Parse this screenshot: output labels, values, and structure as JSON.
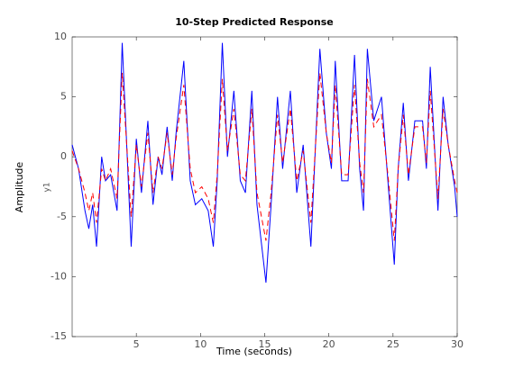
{
  "chart_data": {
    "type": "line",
    "title": "10-Step Predicted Response",
    "xlabel": "Time (seconds)",
    "ylabel": "Amplitude",
    "output_label": "y1",
    "x": [
      0,
      0.5,
      1,
      1.3,
      1.6,
      1.9,
      2.3,
      2.6,
      3,
      3.5,
      3.9,
      4.6,
      5,
      5.4,
      5.9,
      6.3,
      6.7,
      7,
      7.4,
      7.8,
      8.1,
      8.7,
      9.2,
      9.6,
      10.1,
      10.6,
      11,
      11.3,
      11.7,
      12.1,
      12.6,
      13.1,
      13.5,
      14,
      14.4,
      15.1,
      15.5,
      16,
      16.4,
      17,
      17.5,
      18,
      18.6,
      19.3,
      19.8,
      20.2,
      20.5,
      21,
      21.5,
      22,
      22.4,
      22.7,
      23,
      23.5,
      24.1,
      24.6,
      25.1,
      25.4,
      25.8,
      26.2,
      26.7,
      27.3,
      27.6,
      27.9,
      28.5,
      28.9,
      29.3,
      29.8,
      30
    ],
    "series": [
      {
        "color": "#0000ff",
        "dash": "none",
        "values": [
          1,
          -1,
          -4.5,
          -6,
          -4,
          -7.5,
          0,
          -2,
          -1.5,
          -4.5,
          9.5,
          -7.5,
          1.5,
          -3,
          3,
          -4,
          0,
          -1.5,
          2.5,
          -2,
          2,
          8,
          -2,
          -4,
          -3.5,
          -4.5,
          -7.5,
          -2,
          9.5,
          0,
          5.5,
          -2,
          -3,
          5.5,
          -4,
          -10.5,
          -4,
          5,
          -1,
          5.5,
          -3,
          1,
          -7.5,
          9,
          2,
          -1,
          8,
          -2,
          -2,
          8.5,
          -1,
          -4.5,
          9,
          3,
          5,
          -2,
          -9,
          -1,
          4.5,
          -2,
          3,
          3,
          -1,
          7.5,
          -4.5,
          5,
          1,
          -2.5,
          -5
        ]
      },
      {
        "color": "#ff0000",
        "dash": "6,4",
        "values": [
          0.5,
          -1,
          -3,
          -4.5,
          -3,
          -5.5,
          -1,
          -2,
          -1,
          -3.5,
          7,
          -5,
          1,
          -2.5,
          2,
          -3,
          0,
          -1,
          2,
          -1.5,
          1.5,
          6,
          -1,
          -3,
          -2.5,
          -3.5,
          -5.5,
          -1.5,
          6.5,
          0.5,
          4,
          -1.5,
          -2,
          4,
          -3,
          -7,
          -3,
          3.5,
          -0.5,
          4,
          -2,
          0.5,
          -5.5,
          7,
          2,
          -0.5,
          6,
          -1.5,
          -1.5,
          6,
          -0.5,
          -3,
          6.5,
          2.5,
          3.5,
          -1.5,
          -7,
          -1,
          3.5,
          -1.5,
          2.5,
          2.5,
          -0.5,
          5.5,
          -3.5,
          4,
          1,
          -2,
          -3
        ]
      }
    ],
    "xlim": [
      0,
      30
    ],
    "xticks": [
      5,
      10,
      15,
      20,
      25,
      30
    ],
    "ylim": [
      -15,
      10
    ],
    "yticks": [
      -15,
      -10,
      -5,
      0,
      5,
      10
    ]
  }
}
